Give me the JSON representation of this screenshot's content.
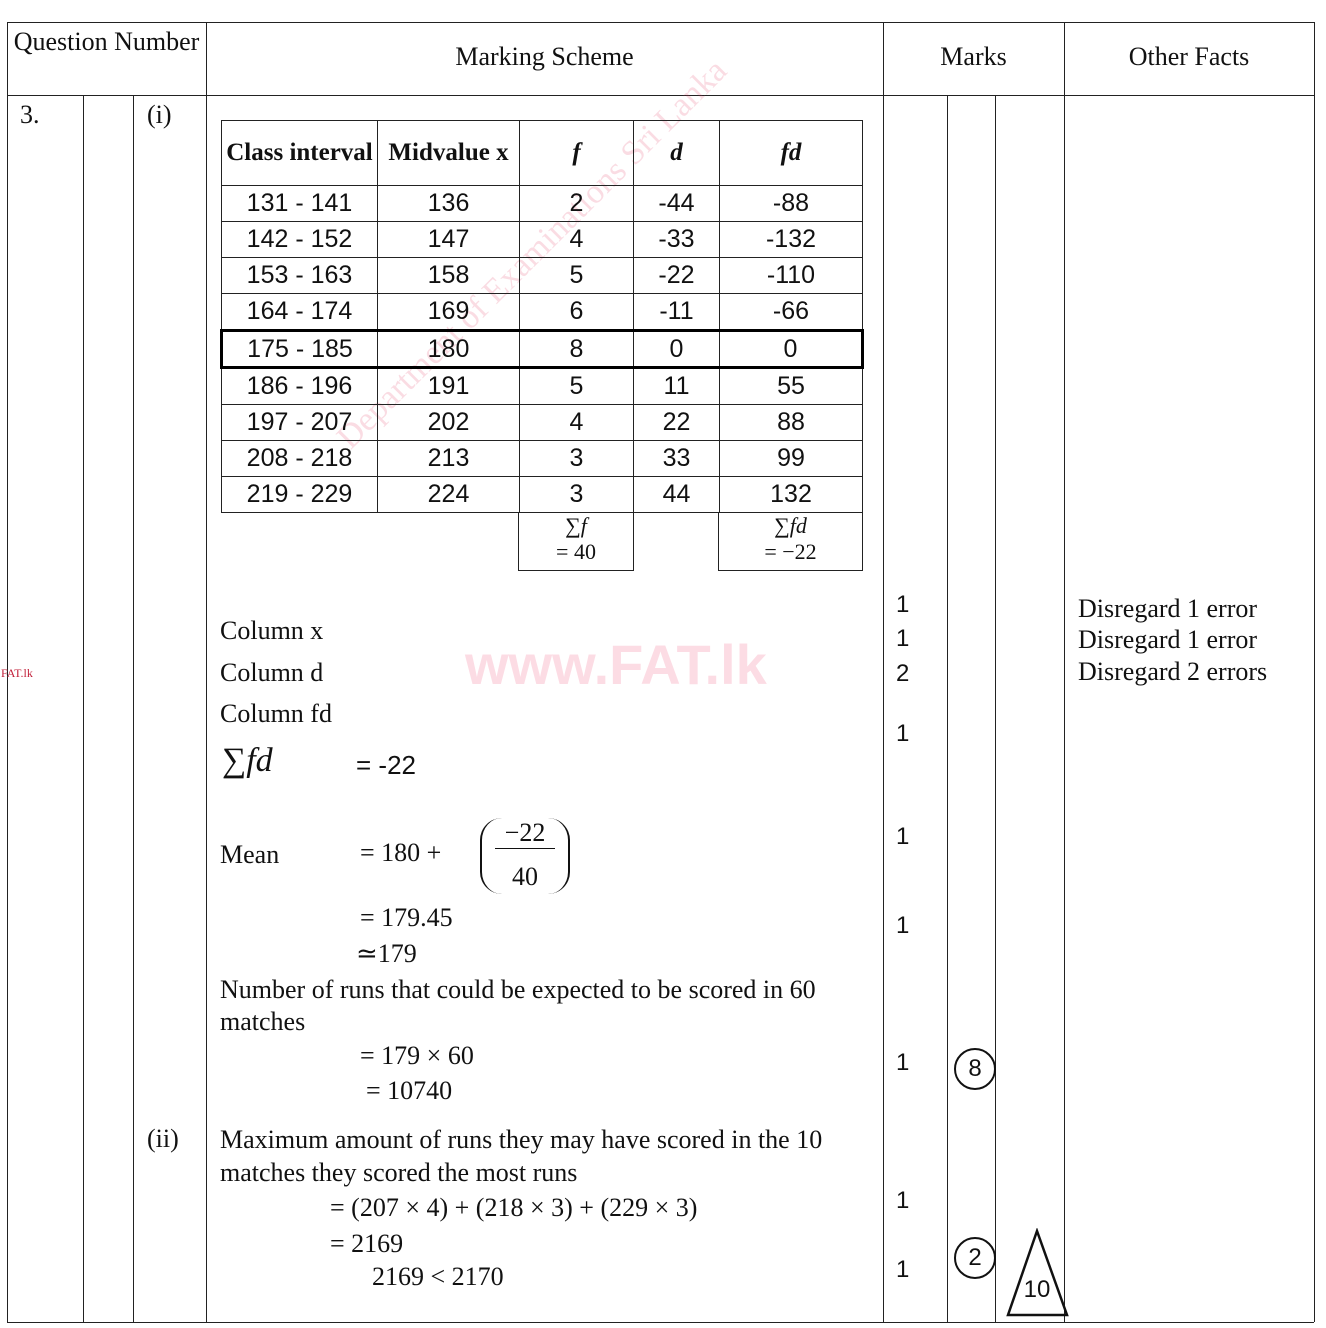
{
  "header": {
    "question_number": "Question Number",
    "marking_scheme": "Marking Scheme",
    "marks": "Marks",
    "other_facts": "Other Facts"
  },
  "question": {
    "number": "3.",
    "part1": "(i)",
    "part2": "(ii)"
  },
  "freq_table": {
    "headers": [
      "Class interval",
      "Midvalue x",
      "f",
      "d",
      "fd"
    ],
    "rows": [
      [
        "131  -  141",
        "136",
        "2",
        "-44",
        "-88"
      ],
      [
        "142  -  152",
        "147",
        "4",
        "-33",
        "-132"
      ],
      [
        "153  -  163",
        "158",
        "5",
        "-22",
        "-110"
      ],
      [
        "164  -  174",
        "169",
        "6",
        "-11",
        "-66"
      ],
      [
        "175  -  185",
        "180",
        "8",
        "0",
        "0"
      ],
      [
        "186  -  196",
        "191",
        "5",
        "11",
        "55"
      ],
      [
        "197  -  207",
        "202",
        "4",
        "22",
        "88"
      ],
      [
        "208  -  218",
        "213",
        "3",
        "33",
        "99"
      ],
      [
        "219  -  229",
        "224",
        "3",
        "44",
        "132"
      ]
    ],
    "sum_f": "∑f",
    "sum_f_val": "= 40",
    "sum_fd": "∑fd",
    "sum_fd_val": "= −22"
  },
  "working": {
    "col_x": "Column x",
    "col_d": "Column d",
    "col_fd": "Column fd",
    "sum_fd_label": "∑fd",
    "sum_fd_eq": "=  -22",
    "mean_label": "Mean",
    "mean_eq1": "= 180 +",
    "frac_num": "−22",
    "frac_den": "40",
    "mean_eq2": "= 179.45",
    "mean_eq3": "≃179",
    "runs_text1": "Number of runs that could be expected to be scored in 60",
    "runs_text2": "matches",
    "runs_eq1": "= 179  × 60",
    "runs_eq2": "= 10740",
    "ii_text1": "Maximum amount of runs they may have scored in the 10",
    "ii_text2": "matches they scored the most runs",
    "ii_eq1": "=   (207  × 4) + (218 × 3) + (229  × 3)",
    "ii_eq2": "=    2169",
    "ii_eq3": "2169 < 2170"
  },
  "marks": [
    "1",
    "1",
    "2",
    "1",
    "1",
    "1",
    "1",
    "1",
    "1"
  ],
  "subtotals": {
    "part1": "8",
    "part2": "2",
    "total": "10"
  },
  "other_facts": [
    "Disregard 1 error",
    "Disregard 1 error",
    "Disregard 2 errors"
  ],
  "watermarks": {
    "site": "www.FAT.lk",
    "side": "FAT.lk",
    "diagonal": "Department of Examinations Sri Lanka"
  }
}
